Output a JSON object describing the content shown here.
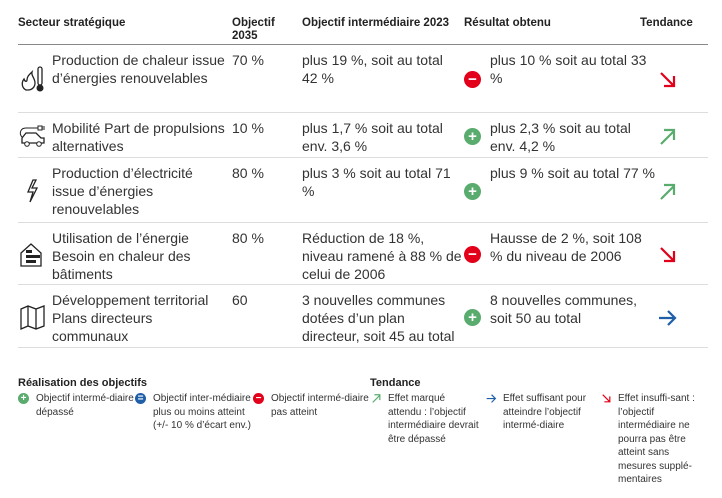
{
  "colors": {
    "green": "#5aab6e",
    "red": "#e2001a",
    "blue": "#1f5fa8"
  },
  "header": {
    "sector": "Secteur stratégique",
    "objective": "Objectif 2035",
    "intermediate": "Objectif intermédiaire 2023",
    "result": "Résultat obtenu",
    "trend": "Tendance"
  },
  "rows": [
    {
      "icon": "fire-thermometer-icon",
      "sector": "Production de chaleur issue d’énergies renouvelables",
      "objective": "70 %",
      "intermediate": "plus 19 %, soit au total 42 %",
      "status": "not-reached",
      "result": "plus 10 % soit au total 33 %",
      "trend": "insufficient"
    },
    {
      "icon": "electric-car-icon",
      "sector": "Mobilité Part de propulsions alternatives",
      "objective": "10 %",
      "intermediate": "plus 1,7 % soit au total env. 3,6 %",
      "status": "exceeded",
      "result": "plus 2,3 % soit au total env. 4,2 %",
      "trend": "marked"
    },
    {
      "icon": "lightning-icon",
      "sector": "Production d’électricité issue d’énergies renouvelables",
      "objective": "80 %",
      "intermediate": "plus 3 % soit au total 71 %",
      "status": "exceeded",
      "result": "plus 9 % soit au total 77 %",
      "trend": "marked"
    },
    {
      "icon": "building-energy-icon",
      "sector": "Utilisation de l’énergie Besoin en chaleur des bâtiments",
      "objective": "80 %",
      "intermediate": "Réduction de 18 %, niveau ramené à 88 % de celui de 2006",
      "status": "not-reached",
      "result": "Hausse de 2 %, soit 108 % du niveau de 2006",
      "trend": "insufficient"
    },
    {
      "icon": "map-icon",
      "sector": "Développement territorial Plans directeurs communaux",
      "objective": "60",
      "intermediate": "3 nouvelles communes dotées d’un plan directeur, soit 45 au total",
      "status": "exceeded",
      "result": "8 nouvelles communes, soit 50 au total",
      "trend": "sufficient"
    }
  ],
  "legend": {
    "achievement_title": "Réalisation des objectifs",
    "achievement": [
      {
        "status": "exceeded",
        "text": "Objectif intermé-diaire dépassé"
      },
      {
        "status": "approx",
        "text": "Objectif inter-médiaire plus ou moins atteint (+/- 10 % d’écart env.)"
      },
      {
        "status": "not-reached",
        "text": "Objectif intermé-diaire pas atteint"
      }
    ],
    "trend_title": "Tendance",
    "trend": [
      {
        "trend": "marked",
        "text": "Effet marqué attendu : l’objectif intermédiaire devrait être dépassé"
      },
      {
        "trend": "sufficient",
        "text": "Effet suffisant pour atteindre l’objectif intermé-diaire"
      },
      {
        "trend": "insufficient",
        "text": "Effet insuffi-sant : l’objectif intermédiaire ne pourra pas être atteint sans mesures supplé-mentaires"
      }
    ]
  }
}
